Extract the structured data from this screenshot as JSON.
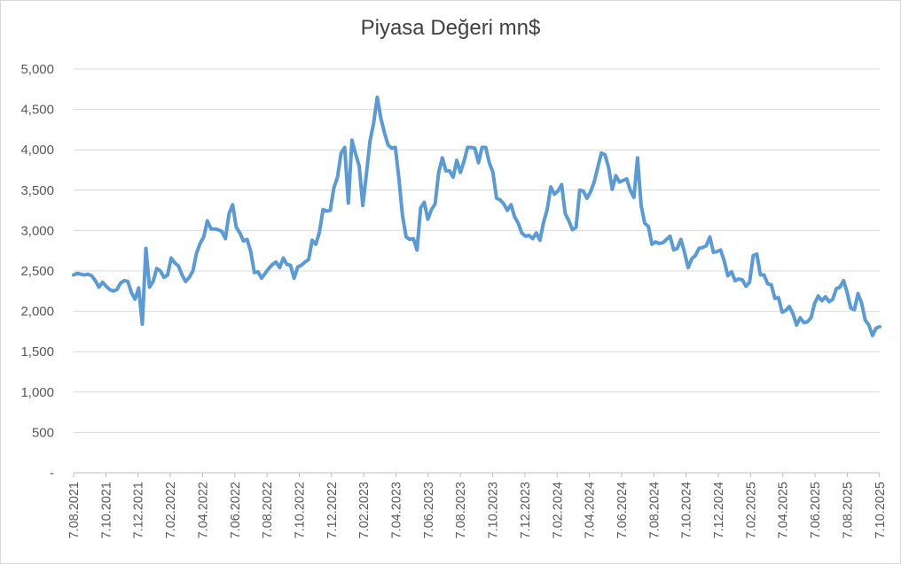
{
  "chart_data": {
    "type": "line",
    "title": "Piyasa Değeri mn$",
    "xlabel": "",
    "ylabel": "",
    "ylim": [
      0,
      5000
    ],
    "y_ticks": [
      {
        "value": 0,
        "label": "-"
      },
      {
        "value": 500,
        "label": "500"
      },
      {
        "value": 1000,
        "label": "1,000"
      },
      {
        "value": 1500,
        "label": "1,500"
      },
      {
        "value": 2000,
        "label": "2,000"
      },
      {
        "value": 2500,
        "label": "2,500"
      },
      {
        "value": 3000,
        "label": "3,000"
      },
      {
        "value": 3500,
        "label": "3,500"
      },
      {
        "value": 4000,
        "label": "4,000"
      },
      {
        "value": 4500,
        "label": "4,500"
      },
      {
        "value": 5000,
        "label": "5,000"
      }
    ],
    "x_ticks": [
      "7.08.2021",
      "7.10.2021",
      "7.12.2021",
      "7.02.2022",
      "7.04.2022",
      "7.06.2022",
      "7.08.2022",
      "7.10.2022",
      "7.12.2022",
      "7.02.2023",
      "7.04.2023",
      "7.06.2023",
      "7.08.2023",
      "7.10.2023",
      "7.12.2023",
      "7.02.2024",
      "7.04.2024",
      "7.06.2024",
      "7.08.2024",
      "7.10.2024",
      "7.12.2024",
      "7.02.2025",
      "7.04.2025",
      "7.06.2025",
      "7.08.2025",
      "7.10.2025"
    ],
    "grid": true,
    "legend": "none",
    "color": "#5b9bd5",
    "series": [
      {
        "values": [
          2450,
          2470,
          2460,
          2450,
          2460,
          2440,
          2380,
          2300,
          2360,
          2310,
          2270,
          2250,
          2270,
          2350,
          2380,
          2370,
          2230,
          2150,
          2290,
          1840,
          2780,
          2300,
          2370,
          2530,
          2500,
          2420,
          2450,
          2660,
          2600,
          2560,
          2450,
          2370,
          2420,
          2500,
          2720,
          2840,
          2920,
          3120,
          3020,
          3020,
          3010,
          2990,
          2900,
          3210,
          3320,
          3040,
          2970,
          2870,
          2890,
          2740,
          2480,
          2490,
          2410,
          2470,
          2530,
          2580,
          2610,
          2540,
          2660,
          2580,
          2570,
          2410,
          2550,
          2570,
          2610,
          2640,
          2880,
          2830,
          2980,
          3260,
          3240,
          3250,
          3530,
          3660,
          3960,
          4030,
          3340,
          4120,
          3950,
          3800,
          3310,
          3700,
          4110,
          4330,
          4650,
          4390,
          4210,
          4060,
          4020,
          4030,
          3640,
          3180,
          2920,
          2890,
          2900,
          2760,
          3280,
          3350,
          3140,
          3260,
          3330,
          3720,
          3900,
          3740,
          3740,
          3660,
          3870,
          3720,
          3860,
          4030,
          4030,
          4020,
          3840,
          4030,
          4030,
          3840,
          3720,
          3400,
          3380,
          3330,
          3250,
          3320,
          3170,
          3090,
          2970,
          2930,
          2940,
          2900,
          2970,
          2880,
          3100,
          3260,
          3540,
          3450,
          3490,
          3570,
          3210,
          3120,
          3010,
          3040,
          3500,
          3490,
          3400,
          3480,
          3600,
          3780,
          3960,
          3940,
          3780,
          3510,
          3680,
          3600,
          3620,
          3640,
          3500,
          3410,
          3900,
          3310,
          3090,
          3050,
          2830,
          2860,
          2840,
          2850,
          2890,
          2930,
          2760,
          2780,
          2890,
          2730,
          2540,
          2650,
          2690,
          2780,
          2790,
          2810,
          2920,
          2730,
          2740,
          2760,
          2620,
          2440,
          2490,
          2380,
          2400,
          2390,
          2310,
          2360,
          2690,
          2710,
          2450,
          2450,
          2340,
          2330,
          2160,
          2170,
          1990,
          2010,
          2060,
          1970,
          1830,
          1920,
          1860,
          1870,
          1920,
          2100,
          2190,
          2130,
          2180,
          2120,
          2150,
          2280,
          2300,
          2380,
          2230,
          2040,
          2020,
          2220,
          2100,
          1890,
          1830,
          1700,
          1790,
          1810
        ]
      }
    ]
  }
}
